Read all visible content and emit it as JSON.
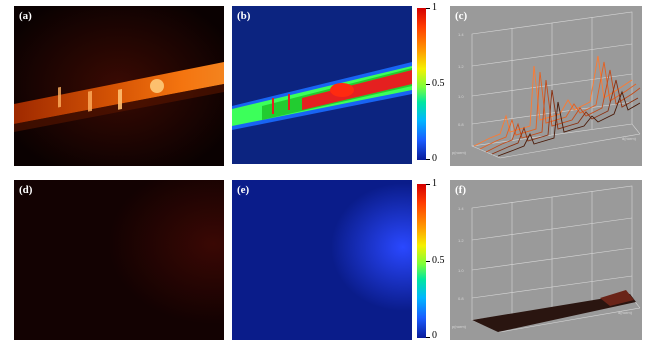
{
  "panels": {
    "a": {
      "label": "(a)"
    },
    "b": {
      "label": "(b)"
    },
    "c": {
      "label": "(c)"
    },
    "d": {
      "label": "(d)"
    },
    "e": {
      "label": "(e)"
    },
    "f": {
      "label": "(f)"
    }
  },
  "colorbar_top": {
    "max_label": "1",
    "mid_label": "0.5",
    "min_label": "0"
  },
  "colorbar_bottom": {
    "max_label": "1",
    "mid_label": "0.5",
    "min_label": "0"
  }
}
